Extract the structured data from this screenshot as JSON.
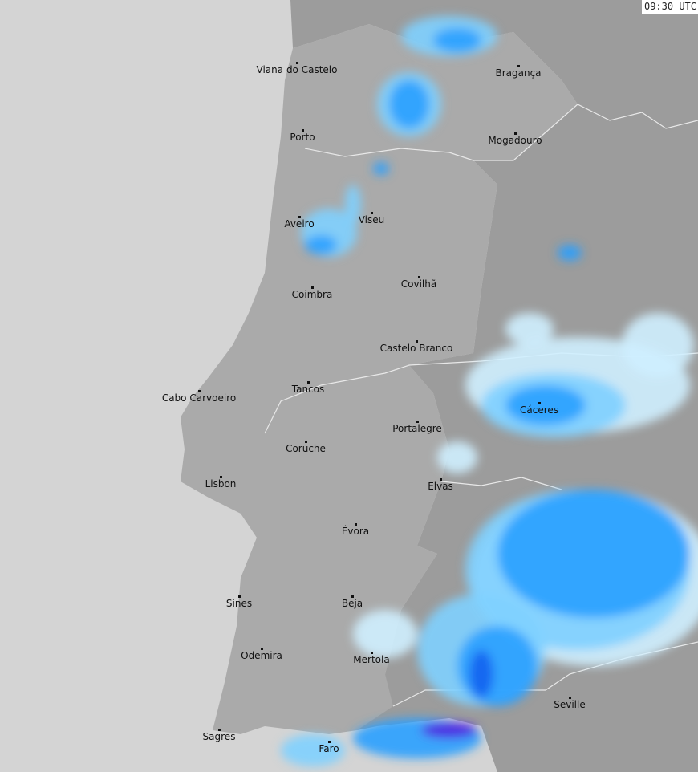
{
  "timestamp": "09:30 UTC",
  "colors": {
    "sea": "#d4d4d4",
    "portugal": "#aaaaaa",
    "spain": "#9c9c9c",
    "border": "#e8e8e8",
    "rain_light": "#cfefff",
    "rain_mid": "#7fd0ff",
    "rain": "#2aa0ff",
    "rain_heavy": "#1060f0",
    "rain_intense": "#5020e0"
  },
  "cities": [
    {
      "name": "Viana do Castelo"
    },
    {
      "name": "Bragança"
    },
    {
      "name": "Porto"
    },
    {
      "name": "Mogadouro"
    },
    {
      "name": "Aveiro"
    },
    {
      "name": "Viseu"
    },
    {
      "name": "Coimbra"
    },
    {
      "name": "Covilhã"
    },
    {
      "name": "Castelo Branco"
    },
    {
      "name": "Cabo Carvoeiro"
    },
    {
      "name": "Tancos"
    },
    {
      "name": "Cáceres"
    },
    {
      "name": "Portalegre"
    },
    {
      "name": "Coruche"
    },
    {
      "name": "Lisbon"
    },
    {
      "name": "Elvas"
    },
    {
      "name": "Évora"
    },
    {
      "name": "Sines"
    },
    {
      "name": "Beja"
    },
    {
      "name": "Odemira"
    },
    {
      "name": "Mertola"
    },
    {
      "name": "Seville"
    },
    {
      "name": "Sagres"
    },
    {
      "name": "Faro"
    }
  ]
}
